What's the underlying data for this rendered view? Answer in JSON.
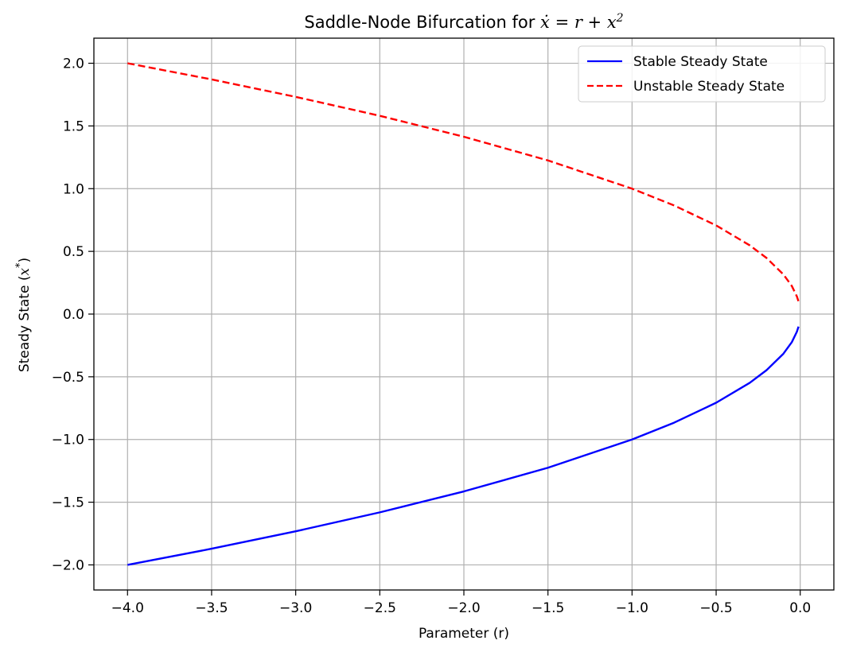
{
  "chart_data": {
    "type": "line",
    "title": {
      "prefix": "Saddle-Node Bifurcation for ",
      "eq_lhs": "ẋ",
      "eq_mid": " = r + x",
      "eq_exp": "2"
    },
    "xlabel": "Parameter (r)",
    "ylabel": {
      "text": "Steady State (",
      "var": "x",
      "sup": "*",
      "close": ")"
    },
    "xlim": [
      -4.2,
      0.2
    ],
    "ylim": [
      -2.2,
      2.2
    ],
    "xticks": [
      -4.0,
      -3.5,
      -3.0,
      -2.5,
      -2.0,
      -1.5,
      -1.0,
      -0.5,
      0.0
    ],
    "yticks": [
      -2.0,
      -1.5,
      -1.0,
      -0.5,
      0.0,
      0.5,
      1.0,
      1.5,
      2.0
    ],
    "xtick_labels": [
      "−4.0",
      "−3.5",
      "−3.0",
      "−2.5",
      "−2.0",
      "−1.5",
      "−1.0",
      "−0.5",
      "0.0"
    ],
    "ytick_labels": [
      "−2.0",
      "−1.5",
      "−1.0",
      "−0.5",
      "0.0",
      "0.5",
      "1.0",
      "1.5",
      "2.0"
    ],
    "grid": true,
    "legend_position": "top-right",
    "series": [
      {
        "name": "Stable Steady State",
        "color": "#0000ff",
        "style": "solid",
        "x": [
          -4.0,
          -3.5,
          -3.0,
          -2.5,
          -2.0,
          -1.5,
          -1.0,
          -0.75,
          -0.5,
          -0.3,
          -0.2,
          -0.1,
          -0.05,
          -0.02,
          -0.01
        ],
        "y": [
          -2.0,
          -1.871,
          -1.732,
          -1.581,
          -1.414,
          -1.225,
          -1.0,
          -0.866,
          -0.707,
          -0.548,
          -0.447,
          -0.316,
          -0.224,
          -0.141,
          -0.1
        ]
      },
      {
        "name": "Unstable Steady State",
        "color": "#ff0000",
        "style": "dashed",
        "x": [
          -4.0,
          -3.5,
          -3.0,
          -2.5,
          -2.0,
          -1.5,
          -1.0,
          -0.75,
          -0.5,
          -0.3,
          -0.2,
          -0.1,
          -0.05,
          -0.02,
          -0.01
        ],
        "y": [
          2.0,
          1.871,
          1.732,
          1.581,
          1.414,
          1.225,
          1.0,
          0.866,
          0.707,
          0.548,
          0.447,
          0.316,
          0.224,
          0.141,
          0.1
        ]
      }
    ]
  }
}
